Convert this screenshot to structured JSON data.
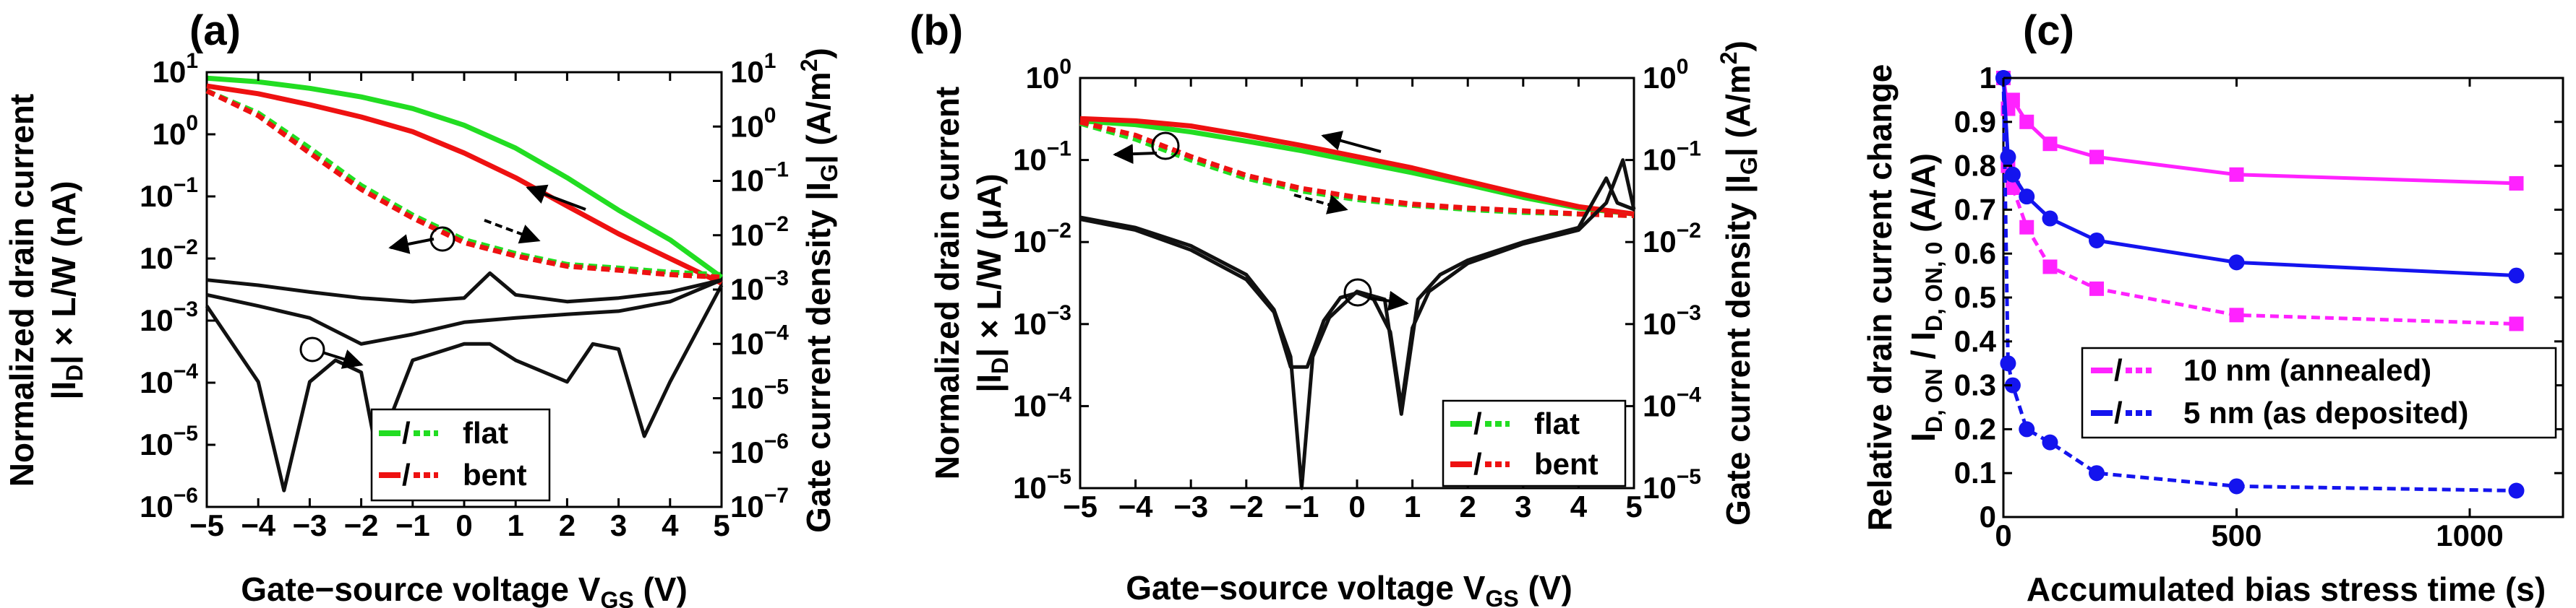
{
  "colors": {
    "flat": "#22dd22",
    "bent": "#ee1111",
    "hysteresis": "#111111",
    "annealed": "#ff22ff",
    "as_deposited": "#1414ee"
  },
  "chart_data": [
    {
      "id": "a",
      "type": "line",
      "panel_label": "(a)",
      "xlabel": "Gate−source voltage V",
      "xlabel_sub": "GS",
      "xlabel_unit": " (V)",
      "ylabel_line1": "Normalized drain current",
      "ylabel_line2_pre": "|I",
      "ylabel_line2_sub": "D",
      "ylabel_line2_post": "| × L/W (nA)",
      "y2label_pre": "Gate current density |I",
      "y2label_sub": "G",
      "y2label_post": "| (A/m",
      "y2label_sup": "2",
      "y2label_end": ")",
      "xlim": [
        -5,
        5
      ],
      "xticks": [
        -5,
        -4,
        -3,
        -2,
        -1,
        0,
        1,
        2,
        3,
        4,
        5
      ],
      "ylim_log10": [
        -6,
        1
      ],
      "yticks_exp": [
        -6,
        -5,
        -4,
        -3,
        -2,
        -1,
        0,
        1
      ],
      "y2lim_log10": [
        -7,
        1
      ],
      "y2ticks_exp": [
        -7,
        -6,
        -5,
        -4,
        -3,
        -2,
        -1,
        0,
        1
      ],
      "legend": {
        "position": "bottom-right",
        "entries": [
          {
            "slash": "/",
            "label": "flat",
            "series": "flat"
          },
          {
            "slash": "/",
            "label": "bent",
            "series": "bent"
          }
        ]
      },
      "series": [
        {
          "name": "flat drain current (solid)",
          "color_key": "flat",
          "style": "solid",
          "x": [
            -5,
            -4,
            -3,
            -2,
            -1,
            0,
            1,
            2,
            3,
            4,
            5
          ],
          "y": [
            8.0,
            7.0,
            5.5,
            4.0,
            2.6,
            1.4,
            0.6,
            0.2,
            0.06,
            0.02,
            0.005
          ]
        },
        {
          "name": "bent drain current (solid)",
          "color_key": "bent",
          "style": "solid",
          "x": [
            -5,
            -4,
            -3,
            -2,
            -1,
            0,
            1,
            2,
            3,
            4,
            5
          ],
          "y": [
            6.0,
            4.5,
            3.0,
            1.9,
            1.1,
            0.5,
            0.2,
            0.07,
            0.025,
            0.01,
            0.004
          ]
        },
        {
          "name": "flat drain current (dashed)",
          "color_key": "flat",
          "style": "dashed",
          "x": [
            -5,
            -4,
            -3,
            -2,
            -1,
            0,
            1,
            2,
            3,
            4,
            5
          ],
          "y": [
            5.0,
            2.2,
            0.6,
            0.15,
            0.05,
            0.02,
            0.012,
            0.008,
            0.007,
            0.006,
            0.0055
          ]
        },
        {
          "name": "bent drain current (dashed)",
          "color_key": "bent",
          "style": "dashed",
          "x": [
            -5,
            -4,
            -3,
            -2,
            -1,
            0,
            1,
            2,
            3,
            4,
            5
          ],
          "y": [
            5.0,
            2.0,
            0.5,
            0.13,
            0.045,
            0.018,
            0.011,
            0.0075,
            0.0065,
            0.0055,
            0.005
          ]
        },
        {
          "name": "gate current density (upper branch)",
          "color_key": "hysteresis",
          "style": "solid",
          "axis": "right",
          "x": [
            -5,
            -4,
            -3,
            -2,
            -1,
            0,
            0.5,
            1,
            2,
            3,
            4,
            5
          ],
          "y": [
            0.0015,
            0.0012,
            0.0009,
            0.0007,
            0.0006,
            0.0007,
            0.002,
            0.0008,
            0.0006,
            0.0007,
            0.0009,
            0.0015
          ]
        },
        {
          "name": "gate current density (middle branch)",
          "color_key": "hysteresis",
          "style": "solid",
          "axis": "right",
          "x": [
            -5,
            -4,
            -3,
            -2,
            -1,
            0,
            1,
            2,
            3,
            4,
            5
          ],
          "y": [
            0.0008,
            0.0005,
            0.0003,
            0.0001,
            0.00015,
            0.00025,
            0.0003,
            0.00035,
            0.0004,
            0.0006,
            0.0015
          ]
        },
        {
          "name": "gate current density (lower branch)",
          "color_key": "hysteresis",
          "style": "solid",
          "axis": "right",
          "x": [
            -5,
            -4.5,
            -4,
            -3.5,
            -3,
            -2.5,
            -2,
            -1.7,
            -1,
            0,
            0.5,
            1,
            2,
            2.5,
            3,
            3.5,
            4,
            5
          ],
          "y": [
            0.0005,
            0.0001,
            2e-05,
            2e-07,
            2e-05,
            5e-05,
            3e-05,
            1e-06,
            5e-05,
            0.0001,
            0.0001,
            5e-05,
            2e-05,
            0.0001,
            8e-05,
            2e-06,
            2e-05,
            0.0012
          ]
        }
      ]
    },
    {
      "id": "b",
      "type": "line",
      "panel_label": "(b)",
      "xlabel": "Gate−source voltage V",
      "xlabel_sub": "GS",
      "xlabel_unit": " (V)",
      "ylabel_line1": "Normalized drain current",
      "ylabel_line2_pre": "|I",
      "ylabel_line2_sub": "D",
      "ylabel_line2_post": "| × L/W (μA)",
      "y2label_pre": "Gate current density |I",
      "y2label_sub": "G",
      "y2label_post": "| (A/m",
      "y2label_sup": "2",
      "y2label_end": ")",
      "xlim": [
        -5,
        5
      ],
      "xticks": [
        -5,
        -4,
        -3,
        -2,
        -1,
        0,
        1,
        2,
        3,
        4,
        5
      ],
      "ylim_log10": [
        -5,
        0
      ],
      "yticks_exp": [
        -5,
        -4,
        -3,
        -2,
        -1,
        0
      ],
      "y2lim_log10": [
        -5,
        0
      ],
      "y2ticks_exp": [
        -5,
        -4,
        -3,
        -2,
        -1,
        0
      ],
      "legend": {
        "position": "bottom-right",
        "entries": [
          {
            "slash": "/",
            "label": "flat",
            "series": "flat"
          },
          {
            "slash": "/",
            "label": "bent",
            "series": "bent"
          }
        ]
      },
      "series": [
        {
          "name": "flat drain current (solid)",
          "color_key": "flat",
          "style": "solid",
          "x": [
            -5,
            -4,
            -3,
            -2,
            -1,
            0,
            1,
            2,
            3,
            4,
            5
          ],
          "y": [
            0.3,
            0.27,
            0.22,
            0.17,
            0.13,
            0.095,
            0.07,
            0.05,
            0.035,
            0.026,
            0.022
          ]
        },
        {
          "name": "bent drain current (solid)",
          "color_key": "bent",
          "style": "solid",
          "x": [
            -5,
            -4,
            -3,
            -2,
            -1,
            0,
            1,
            2,
            3,
            4,
            5
          ],
          "y": [
            0.32,
            0.3,
            0.26,
            0.2,
            0.15,
            0.11,
            0.08,
            0.055,
            0.038,
            0.027,
            0.022
          ]
        },
        {
          "name": "flat drain current (dashed)",
          "color_key": "flat",
          "style": "dashed",
          "x": [
            -5,
            -4,
            -3,
            -2,
            -1,
            0,
            1,
            2,
            3,
            4,
            5
          ],
          "y": [
            0.28,
            0.18,
            0.1,
            0.06,
            0.042,
            0.033,
            0.028,
            0.025,
            0.023,
            0.022,
            0.021
          ]
        },
        {
          "name": "bent drain current (dashed)",
          "color_key": "bent",
          "style": "dashed",
          "x": [
            -5,
            -4,
            -3,
            -2,
            -1,
            0,
            1,
            2,
            3,
            4,
            5
          ],
          "y": [
            0.29,
            0.2,
            0.11,
            0.065,
            0.045,
            0.035,
            0.029,
            0.026,
            0.024,
            0.022,
            0.021
          ]
        },
        {
          "name": "gate current density (sweep 1)",
          "color_key": "hysteresis",
          "style": "solid",
          "axis": "right",
          "x": [
            -5,
            -4,
            -3,
            -2,
            -1.5,
            -1.2,
            -1,
            -0.8,
            -0.5,
            0,
            0.5,
            0.8,
            1.1,
            1.5,
            2,
            3,
            4,
            4.5,
            4.7,
            5
          ],
          "y": [
            0.02,
            0.015,
            0.009,
            0.004,
            0.0015,
            0.0004,
            1e-05,
            0.0004,
            0.0012,
            0.0025,
            0.002,
            8e-05,
            0.002,
            0.004,
            0.006,
            0.01,
            0.015,
            0.06,
            0.03,
            0.025
          ]
        },
        {
          "name": "gate current density (sweep 2)",
          "color_key": "hysteresis",
          "style": "solid",
          "axis": "right",
          "x": [
            -5,
            -4,
            -3,
            -2,
            -1.5,
            -1.2,
            -0.9,
            -0.6,
            -0.3,
            0,
            0.3,
            0.6,
            0.8,
            1.0,
            1.3,
            2,
            3,
            4,
            4.5,
            4.8,
            5
          ],
          "y": [
            0.019,
            0.014,
            0.008,
            0.0035,
            0.0014,
            0.0003,
            0.0003,
            0.0011,
            0.0021,
            0.0024,
            0.002,
            0.0008,
            0.0001,
            0.0009,
            0.0025,
            0.0055,
            0.0095,
            0.014,
            0.03,
            0.1,
            0.025
          ]
        }
      ]
    },
    {
      "id": "c",
      "type": "line",
      "panel_label": "(c)",
      "xlabel": "Accumulated bias stress time (s)",
      "ylabel_line1": "Relative drain current change",
      "ylabel_line2_pre": "I",
      "ylabel_line2_sub": "D, ON",
      "ylabel_line2_mid": " / I",
      "ylabel_line2_sub2": "D, ON, 0",
      "ylabel_line2_post": " (A/A)",
      "xlim": [
        0,
        1200
      ],
      "xticks": [
        0,
        500,
        1000
      ],
      "ylim": [
        0,
        1
      ],
      "yticks": [
        0,
        0.1,
        0.2,
        0.3,
        0.4,
        0.5,
        0.6,
        0.7,
        0.8,
        0.9,
        1
      ],
      "legend": {
        "position": "bottom-right",
        "entries": [
          {
            "slash": "/",
            "label": "10 nm (annealed)",
            "series": "annealed"
          },
          {
            "slash": "/",
            "label": "5 nm (as deposited)",
            "series": "as_deposited"
          }
        ]
      },
      "series": [
        {
          "name": "10 nm (annealed) solid",
          "color_key": "annealed",
          "style": "solid",
          "marker": "square",
          "x": [
            0,
            10,
            20,
            50,
            100,
            200,
            500,
            1100
          ],
          "y": [
            1.0,
            0.93,
            0.95,
            0.9,
            0.85,
            0.82,
            0.78,
            0.76
          ]
        },
        {
          "name": "10 nm (annealed) dashed",
          "color_key": "annealed",
          "style": "dashed",
          "marker": "square",
          "x": [
            0,
            10,
            20,
            50,
            100,
            200,
            500,
            1100
          ],
          "y": [
            1.0,
            0.8,
            0.75,
            0.66,
            0.57,
            0.52,
            0.46,
            0.44
          ]
        },
        {
          "name": "5 nm (as deposited) solid",
          "color_key": "as_deposited",
          "style": "solid",
          "marker": "circle",
          "x": [
            0,
            10,
            20,
            50,
            100,
            200,
            500,
            1100
          ],
          "y": [
            1.0,
            0.82,
            0.78,
            0.73,
            0.68,
            0.63,
            0.58,
            0.55
          ]
        },
        {
          "name": "5 nm (as deposited) dashed",
          "color_key": "as_deposited",
          "style": "dashed",
          "marker": "circle",
          "x": [
            0,
            10,
            20,
            50,
            100,
            200,
            500,
            1100
          ],
          "y": [
            1.0,
            0.35,
            0.3,
            0.2,
            0.17,
            0.1,
            0.07,
            0.06
          ]
        }
      ]
    }
  ]
}
